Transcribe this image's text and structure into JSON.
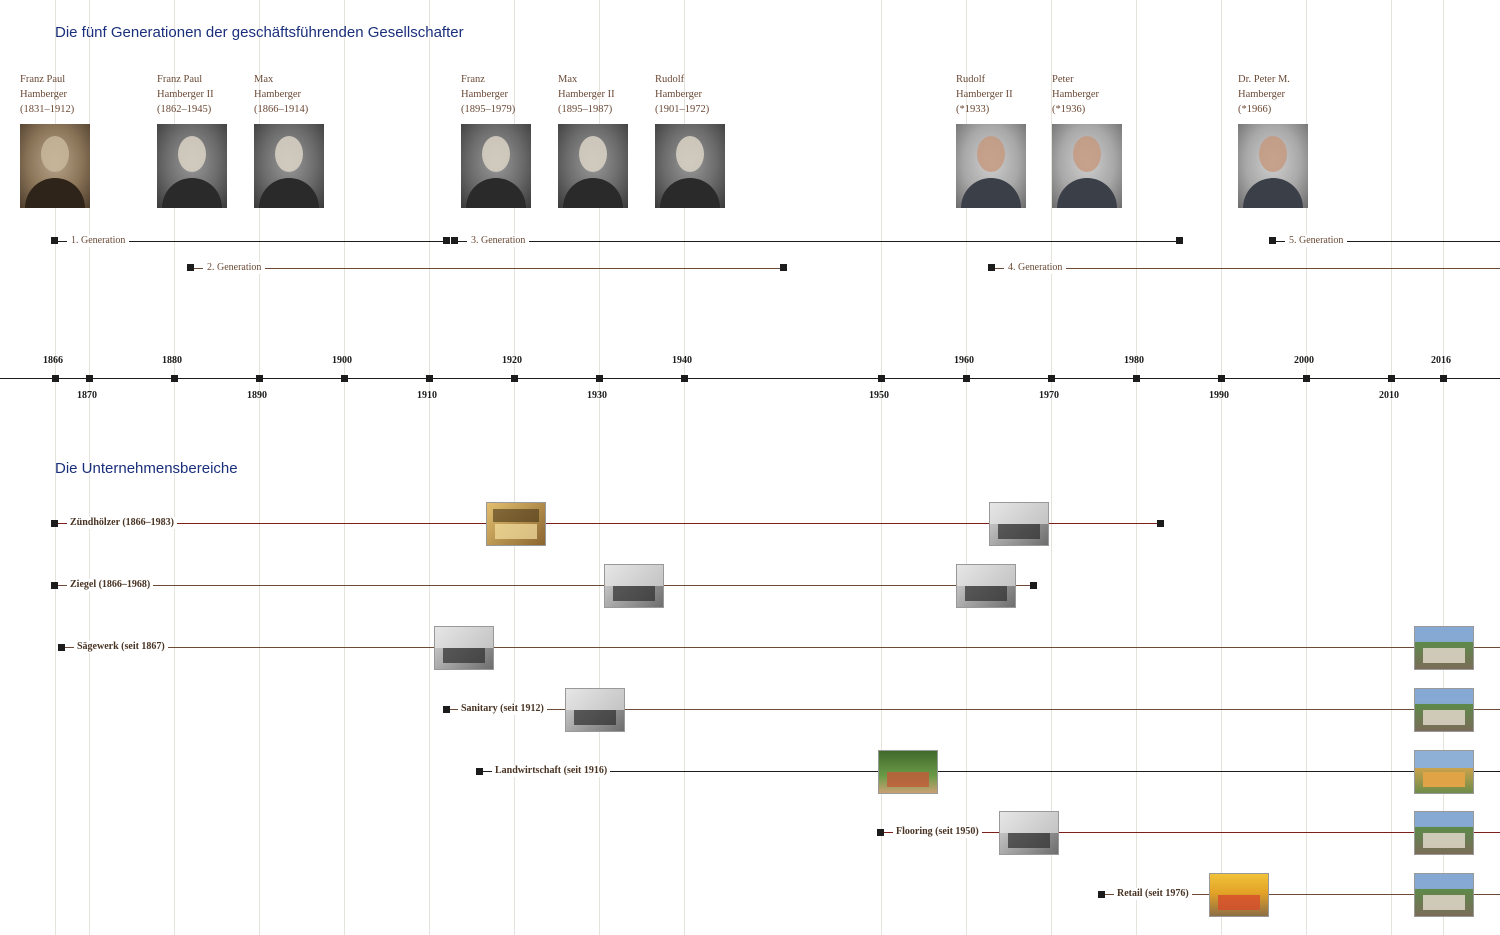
{
  "headings": {
    "generations": "Die fünf Generationen der geschäftsführenden Gesellschafter",
    "business": "Die Unternehmensbereiche"
  },
  "colors": {
    "heading": "#1a2f7c",
    "name_text": "#6b4a36",
    "gridline": "#e6e3dd",
    "line_dark": "#1c1c1c",
    "line_brown": "#6b4a36",
    "line_red": "#7a1f1a"
  },
  "people": [
    {
      "name": "Franz Paul\nHamberger\n(1831–1912)",
      "photo_style": "sepia"
    },
    {
      "name": "Franz Paul\nHamberger II\n(1862–1945)",
      "photo_style": "bw"
    },
    {
      "name": "Max\nHamberger\n(1866–1914)",
      "photo_style": "bw"
    },
    {
      "name": "Franz\nHamberger\n(1895–1979)",
      "photo_style": "bw"
    },
    {
      "name": "Max\nHamberger II\n(1895–1987)",
      "photo_style": "bw"
    },
    {
      "name": "Rudolf\nHamberger\n(1901–1972)",
      "photo_style": "bw"
    },
    {
      "name": "Rudolf\nHamberger II\n(*1933)",
      "photo_style": "color"
    },
    {
      "name": "Peter\nHamberger\n(*1936)",
      "photo_style": "color"
    },
    {
      "name": "Dr. Peter M.\nHamberger\n(*1966)",
      "photo_style": "color"
    }
  ],
  "generations": [
    {
      "label": "1. Generation"
    },
    {
      "label": "2. Generation"
    },
    {
      "label": "3. Generation"
    },
    {
      "label": "4. Generation"
    },
    {
      "label": "5. Generation"
    }
  ],
  "timeline_ticks_top": [
    "1866",
    "1880",
    "1900",
    "1920",
    "1940",
    "1960",
    "1980",
    "2000",
    "2016"
  ],
  "timeline_ticks_bottom": [
    "1870",
    "1890",
    "1910",
    "1930",
    "1950",
    "1970",
    "1990",
    "2010"
  ],
  "business_areas": [
    {
      "label": "Zündhölzer (1866–1983)",
      "line_color": "red"
    },
    {
      "label": "Ziegel (1866–1968)",
      "line_color": "brown"
    },
    {
      "label": "Sägewerk (seit 1867)",
      "line_color": "brown"
    },
    {
      "label": "Sanitary (seit 1912)",
      "line_color": "brown"
    },
    {
      "label": "Landwirtschaft (seit 1916)",
      "line_color": "dark"
    },
    {
      "label": "Flooring (seit 1950)",
      "line_color": "red"
    },
    {
      "label": "Retail (seit 1976)",
      "line_color": "brown"
    }
  ],
  "thumbnail_icons": {
    "historic": "historic-photo-icon",
    "modern": "aerial-photo-icon"
  }
}
